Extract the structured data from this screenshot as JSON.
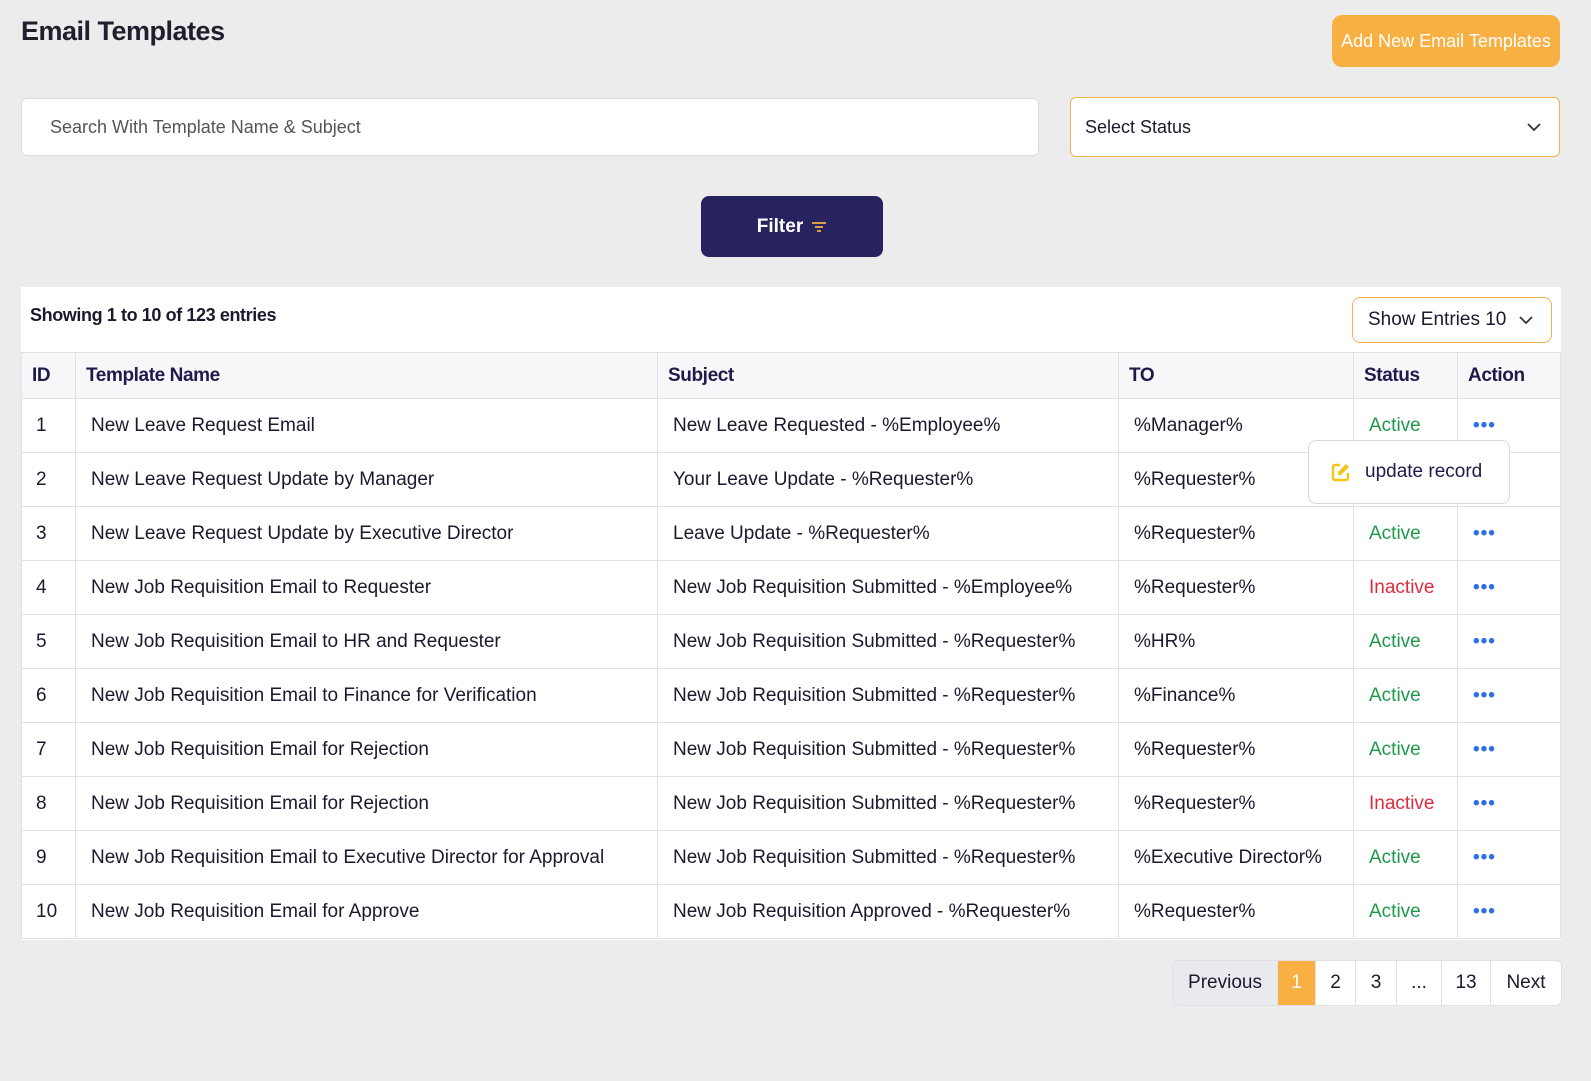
{
  "header": {
    "title": "Email Templates",
    "add_button": "Add New Email Templates"
  },
  "filters": {
    "search_placeholder": "Search With Template Name & Subject",
    "status_select": "Select Status",
    "filter_button": "Filter"
  },
  "table": {
    "showing": "Showing 1 to 10 of 123 entries",
    "show_entries": "Show Entries 10",
    "columns": [
      "ID",
      "Template Name",
      "Subject",
      "TO",
      "Status",
      "Action"
    ],
    "rows": [
      {
        "id": "1",
        "name": "New Leave Request Email",
        "subject": "New Leave Requested - %Employee%",
        "to": "%Manager%",
        "status": "Active"
      },
      {
        "id": "2",
        "name": "New Leave Request Update by Manager",
        "subject": "Your Leave Update - %Requester%",
        "to": "%Requester%",
        "status": ""
      },
      {
        "id": "3",
        "name": "New Leave Request Update by Executive Director",
        "subject": "Leave Update - %Requester%",
        "to": "%Requester%",
        "status": "Active"
      },
      {
        "id": "4",
        "name": "New Job Requisition Email to Requester",
        "subject": "New Job Requisition Submitted - %Employee%",
        "to": "%Requester%",
        "status": "Inactive"
      },
      {
        "id": "5",
        "name": "New Job Requisition Email to HR and Requester",
        "subject": "New Job Requisition Submitted - %Requester%",
        "to": "%HR%",
        "status": "Active"
      },
      {
        "id": "6",
        "name": "New Job Requisition Email to Finance for Verification",
        "subject": "New Job Requisition Submitted - %Requester%",
        "to": "%Finance%",
        "status": "Active"
      },
      {
        "id": "7",
        "name": "New Job Requisition Email for Rejection",
        "subject": "New Job Requisition Submitted - %Requester%",
        "to": "%Requester%",
        "status": "Active"
      },
      {
        "id": "8",
        "name": "New Job Requisition Email for Rejection",
        "subject": "New Job Requisition Submitted - %Requester%",
        "to": "%Requester%",
        "status": "Inactive"
      },
      {
        "id": "9",
        "name": "New Job Requisition Email to Executive Director for Approval",
        "subject": "New Job Requisition Submitted - %Requester%",
        "to": "%Executive Director%",
        "status": "Active"
      },
      {
        "id": "10",
        "name": "New Job Requisition Email for Approve",
        "subject": "New Job Requisition Approved - %Requester%",
        "to": "%Requester%",
        "status": "Active"
      }
    ],
    "action_glyph": "•••"
  },
  "popup": {
    "label": "update record",
    "icon": "edit-icon"
  },
  "pagination": {
    "previous": "Previous",
    "pages": [
      "1",
      "2",
      "3",
      "...",
      "13"
    ],
    "current": "1",
    "next": "Next"
  },
  "colors": {
    "accent": "#f9b042",
    "primary": "#27235f",
    "active": "#1c9a4c",
    "inactive": "#e02a3a"
  }
}
